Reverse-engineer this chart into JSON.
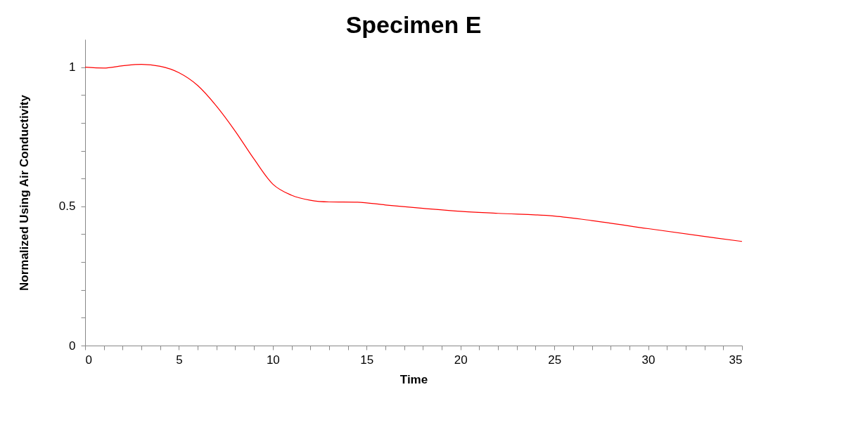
{
  "chart_data": {
    "type": "line",
    "title": "Specimen E",
    "xlabel": "Time",
    "ylabel": "Normalized Using Air Conductivity",
    "x": [
      0,
      1,
      2,
      3,
      4,
      5,
      6,
      7,
      8,
      9,
      10,
      11,
      12,
      13,
      14.5,
      16,
      18,
      20,
      22,
      25,
      27,
      30,
      33,
      35
    ],
    "series": [
      {
        "color": "#ff0000",
        "values": [
          1.0,
          0.997,
          1.005,
          1.01,
          1.003,
          0.98,
          0.934,
          0.86,
          0.77,
          0.67,
          0.58,
          0.54,
          0.522,
          0.516,
          0.515,
          0.505,
          0.493,
          0.482,
          0.475,
          0.465,
          0.449,
          0.42,
          0.392,
          0.374
        ]
      }
    ],
    "xlim": [
      0,
      35
    ],
    "ylim": [
      0,
      1.1
    ],
    "xticks": [
      0,
      {
        "value": 1,
        "label": null
      },
      {
        "value": 2,
        "label": null
      },
      {
        "value": 3,
        "label": null
      },
      {
        "value": 4,
        "label": null
      },
      5,
      {
        "value": 6,
        "label": null
      },
      {
        "value": 7,
        "label": null
      },
      {
        "value": 8,
        "label": null
      },
      {
        "value": 9,
        "label": null
      },
      10,
      {
        "value": 11,
        "label": null
      },
      {
        "value": 12,
        "label": null
      },
      {
        "value": 13,
        "label": null
      },
      {
        "value": 14,
        "label": null
      },
      15,
      {
        "value": 16,
        "label": null
      },
      {
        "value": 17,
        "label": null
      },
      {
        "value": 18,
        "label": null
      },
      {
        "value": 19,
        "label": null
      },
      20,
      {
        "value": 21,
        "label": null
      },
      {
        "value": 22,
        "label": null
      },
      {
        "value": 23,
        "label": null
      },
      {
        "value": 24,
        "label": null
      },
      25,
      {
        "value": 26,
        "label": null
      },
      {
        "value": 27,
        "label": null
      },
      {
        "value": 28,
        "label": null
      },
      {
        "value": 29,
        "label": null
      },
      30,
      {
        "value": 31,
        "label": null
      },
      {
        "value": 32,
        "label": null
      },
      {
        "value": 33,
        "label": null
      },
      {
        "value": 34,
        "label": null
      },
      35
    ],
    "yticks": [
      0,
      {
        "value": 0.1,
        "label": null
      },
      {
        "value": 0.2,
        "label": null
      },
      {
        "value": 0.3,
        "label": null
      },
      {
        "value": 0.4,
        "label": null
      },
      0.5,
      {
        "value": 0.6,
        "label": null
      },
      {
        "value": 0.7,
        "label": null
      },
      {
        "value": 0.8,
        "label": null
      },
      {
        "value": 0.9,
        "label": null
      },
      1
    ],
    "grid": false,
    "marker": "none",
    "line_style": "solid"
  }
}
